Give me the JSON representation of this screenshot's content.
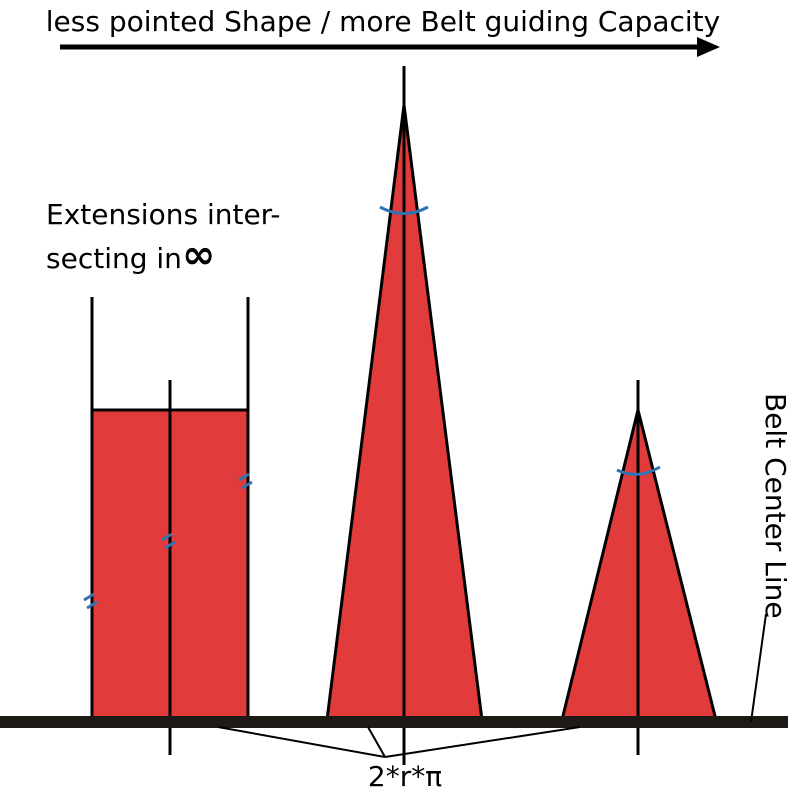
{
  "header": {
    "direction_label": "less pointed Shape / more Belt guiding Capacity"
  },
  "annotations": {
    "extensions_line1": "Extensions inter-",
    "extensions_line2": "secting in",
    "infinity_symbol": "∞",
    "belt_center_line": "Belt Center Line",
    "circumference": "2*r*π"
  },
  "colors": {
    "fill": "#e23b3b",
    "stroke": "#000000",
    "belt": "#1e1a16",
    "mark": "#2e74b5"
  }
}
